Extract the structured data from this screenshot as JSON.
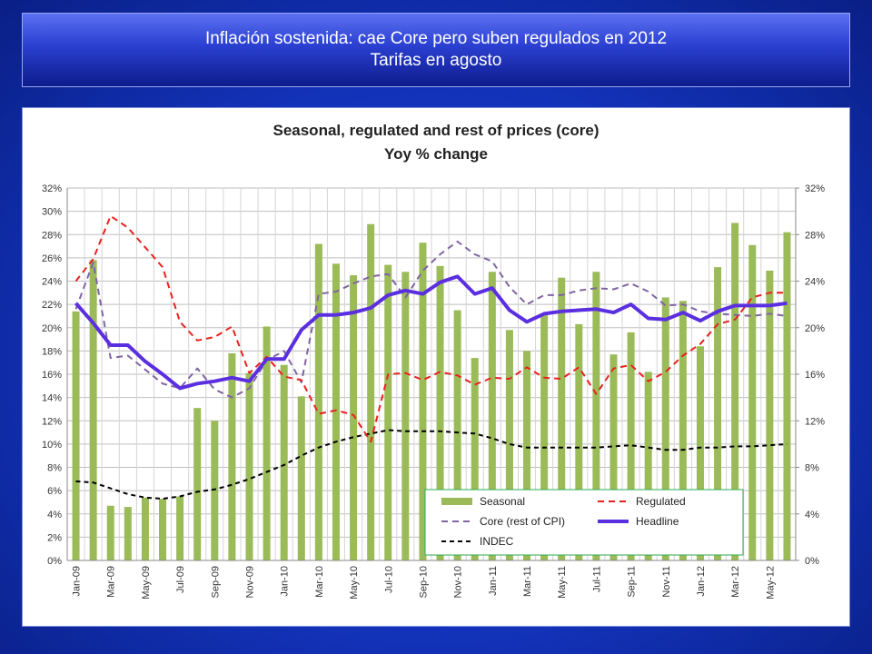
{
  "header": {
    "line1": "Inflación sostenida: cae Core pero suben regulados en 2012",
    "line2": "Tarifas en agosto"
  },
  "chart_data": {
    "type": "bar",
    "title": "Seasonal, regulated and rest of prices (core)",
    "subtitle": "Yoy % change",
    "ylim": [
      0,
      32
    ],
    "y_ticks": [
      "0%",
      "2%",
      "4%",
      "6%",
      "8%",
      "10%",
      "12%",
      "14%",
      "16%",
      "18%",
      "20%",
      "22%",
      "24%",
      "26%",
      "28%",
      "30%",
      "32%"
    ],
    "y2lim": [
      0,
      32
    ],
    "y2_ticks": [
      "0%",
      "4%",
      "8%",
      "12%",
      "16%",
      "20%",
      "24%",
      "28%",
      "32%"
    ],
    "grid": true,
    "legend_position": "bottom-right",
    "x": [
      "Jan-09",
      "Feb-09",
      "Mar-09",
      "Apr-09",
      "May-09",
      "Jun-09",
      "Jul-09",
      "Aug-09",
      "Sep-09",
      "Oct-09",
      "Nov-09",
      "Dec-09",
      "Jan-10",
      "Feb-10",
      "Mar-10",
      "Apr-10",
      "May-10",
      "Jun-10",
      "Jul-10",
      "Aug-10",
      "Sep-10",
      "Oct-10",
      "Nov-10",
      "Dec-10",
      "Jan-11",
      "Feb-11",
      "Mar-11",
      "Apr-11",
      "May-11",
      "Jun-11",
      "Jul-11",
      "Aug-11",
      "Sep-11",
      "Oct-11",
      "Nov-11",
      "Dec-11",
      "Jan-12",
      "Feb-12",
      "Mar-12",
      "Apr-12",
      "May-12",
      "Jun-12"
    ],
    "x_tick_labels": [
      "Jan-09",
      "Mar-09",
      "May-09",
      "Jul-09",
      "Sep-09",
      "Nov-09",
      "Jan-10",
      "Mar-10",
      "May-10",
      "Jul-10",
      "Sep-10",
      "Nov-10",
      "Jan-11",
      "Mar-11",
      "May-11",
      "Jul-11",
      "Sep-11",
      "Nov-11",
      "Jan-12",
      "Mar-12",
      "May-12"
    ],
    "series": [
      {
        "name": "Seasonal",
        "kind": "bar",
        "color": "#9bbb59",
        "values": [
          21.4,
          25.8,
          4.7,
          4.6,
          5.4,
          5.3,
          5.5,
          13.1,
          12.0,
          17.8,
          16.1,
          20.1,
          16.8,
          14.1,
          27.2,
          25.5,
          24.5,
          28.9,
          25.4,
          24.8,
          27.3,
          25.3,
          21.5,
          17.4,
          24.8,
          19.8,
          18.0,
          21.2,
          24.3,
          20.3,
          24.8,
          17.7,
          19.6,
          16.2,
          22.6,
          22.3,
          18.4,
          25.2,
          29.0,
          27.1,
          24.9,
          28.2
        ]
      },
      {
        "name": "Regulated",
        "kind": "line",
        "color": "#e8211e",
        "dash": "7,5",
        "width": 2,
        "values": [
          24.0,
          25.9,
          29.6,
          28.6,
          26.9,
          25.2,
          20.5,
          18.9,
          19.2,
          20.1,
          16.1,
          17.5,
          15.8,
          15.5,
          12.6,
          12.9,
          12.5,
          10.2,
          16.0,
          16.1,
          15.5,
          16.2,
          15.9,
          15.1,
          15.7,
          15.6,
          16.6,
          15.7,
          15.6,
          16.6,
          14.3,
          16.5,
          16.8,
          15.4,
          16.2,
          17.6,
          18.6,
          20.3,
          20.7,
          22.6,
          23.0,
          23.0
        ]
      },
      {
        "name": "Core (rest of CPI)",
        "kind": "line",
        "color": "#8064a2",
        "dash": "7,5",
        "width": 2,
        "values": [
          21.6,
          25.6,
          17.4,
          17.6,
          16.4,
          15.2,
          14.8,
          16.5,
          14.7,
          14.0,
          14.8,
          17.2,
          18.0,
          15.3,
          22.9,
          23.1,
          23.8,
          24.4,
          24.6,
          22.6,
          24.9,
          26.3,
          27.4,
          26.3,
          25.7,
          23.5,
          22.0,
          22.8,
          22.8,
          23.2,
          23.4,
          23.3,
          23.8,
          23.1,
          21.9,
          22.0,
          21.4,
          21.2,
          21.1,
          21.0,
          21.2,
          21.0
        ]
      },
      {
        "name": "Headline",
        "kind": "line",
        "color": "#5b2fe0",
        "dash": "",
        "width": 4,
        "values": [
          22.1,
          20.4,
          18.5,
          18.5,
          17.1,
          16.0,
          14.8,
          15.2,
          15.4,
          15.7,
          15.4,
          17.3,
          17.3,
          19.8,
          21.1,
          21.1,
          21.3,
          21.7,
          22.8,
          23.2,
          22.9,
          23.9,
          24.4,
          22.9,
          23.4,
          21.5,
          20.5,
          21.2,
          21.4,
          21.5,
          21.6,
          21.3,
          22.0,
          20.8,
          20.7,
          21.3,
          20.6,
          21.4,
          21.9,
          21.9,
          21.9,
          22.1
        ]
      },
      {
        "name": "INDEC",
        "kind": "line",
        "color": "#000000",
        "dash": "5,4",
        "width": 2,
        "values": [
          6.8,
          6.7,
          6.2,
          5.7,
          5.4,
          5.3,
          5.5,
          5.9,
          6.1,
          6.5,
          7.0,
          7.6,
          8.2,
          9.0,
          9.7,
          10.2,
          10.6,
          10.9,
          11.2,
          11.1,
          11.1,
          11.1,
          11.0,
          10.9,
          10.5,
          10.0,
          9.7,
          9.7,
          9.7,
          9.7,
          9.7,
          9.8,
          9.9,
          9.7,
          9.5,
          9.5,
          9.7,
          9.7,
          9.8,
          9.8,
          9.9,
          10.0
        ]
      }
    ]
  }
}
